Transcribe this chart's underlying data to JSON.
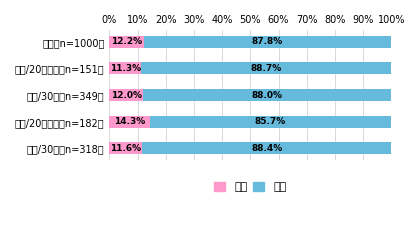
{
  "categories": [
    "全体（n=1000）",
    "男性/20代以下（n=151）",
    "男性/30代（n=349）",
    "女性/20代以下（n=182）",
    "女性/30代（n=318）"
  ],
  "aru": [
    12.2,
    11.3,
    12.0,
    14.3,
    11.6
  ],
  "nai": [
    87.8,
    88.7,
    88.0,
    85.7,
    88.4
  ],
  "color_aru": "#FF99CC",
  "color_nai": "#66BBDD",
  "bg_color": "#FFFFFF",
  "label_aru": "ある",
  "label_nai": "ない",
  "xlim": [
    0,
    100
  ],
  "xticks": [
    0,
    10,
    20,
    30,
    40,
    50,
    60,
    70,
    80,
    90,
    100
  ],
  "bar_height": 0.45,
  "fontsize_labels": 7,
  "fontsize_ticks": 7,
  "fontsize_bar_text": 6.5
}
